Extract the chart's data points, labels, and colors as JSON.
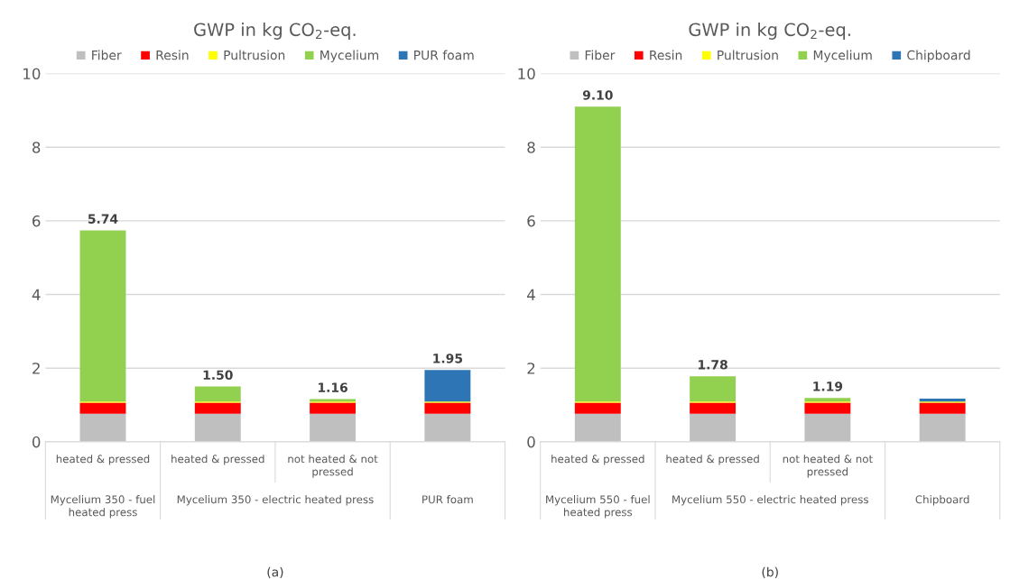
{
  "chart_data": [
    {
      "type": "bar",
      "stacked": true,
      "title": "GWP in kg CO$_{2}$-eq.",
      "categories": [
        "heated & pressed",
        "heated & pressed",
        "not heated & not pressed",
        null
      ],
      "series": [
        {
          "name": "Fiber",
          "color": "#bfbfbf",
          "values": [
            0.76,
            0.76,
            0.76,
            0.76
          ]
        },
        {
          "name": "Resin",
          "color": "#ff0000",
          "values": [
            0.3,
            0.3,
            0.3,
            0.3
          ]
        },
        {
          "name": "Pultrusion",
          "color": "#ffff00",
          "values": [
            0.03,
            0.03,
            0.03,
            0.03
          ]
        },
        {
          "name": "Mycelium",
          "color": "#92d050",
          "values": [
            4.65,
            0.41,
            0.07,
            null
          ]
        },
        {
          "name": "PUR foam",
          "color": "#2e75b6",
          "values": [
            null,
            null,
            null,
            0.86
          ]
        }
      ],
      "totals": [
        "5.74",
        "1.50",
        "1.16",
        "1.95"
      ],
      "ylim": [
        0,
        10
      ],
      "yticks": [
        0,
        2,
        4,
        6,
        8,
        10
      ],
      "grid": "y",
      "legend": "top",
      "annotations": [
        "Mycelium 350 - fuel heated press",
        "Mycelium 350 - electric heated press",
        "PUR foam",
        "(a)"
      ]
    },
    {
      "type": "bar",
      "stacked": true,
      "title": "GWP in kg CO$_{2}$-eq.",
      "categories": [
        "heated & pressed",
        "heated & pressed",
        "not heated & not pressed",
        null
      ],
      "series": [
        {
          "name": "Fiber",
          "color": "#bfbfbf",
          "values": [
            0.76,
            0.76,
            0.76,
            0.76
          ]
        },
        {
          "name": "Resin",
          "color": "#ff0000",
          "values": [
            0.3,
            0.3,
            0.3,
            0.3
          ]
        },
        {
          "name": "Pultrusion",
          "color": "#ffff00",
          "values": [
            0.03,
            0.03,
            0.03,
            0.03
          ]
        },
        {
          "name": "Mycelium",
          "color": "#92d050",
          "values": [
            8.01,
            0.69,
            0.1,
            null
          ]
        },
        {
          "name": "Chipboard",
          "color": "#2e75b6",
          "values": [
            null,
            null,
            null,
            0.08
          ]
        }
      ],
      "totals": [
        "9.10",
        "1.78",
        "1.19",
        null
      ],
      "ylim": [
        0,
        10
      ],
      "yticks": [
        0,
        2,
        4,
        6,
        8,
        10
      ],
      "grid": "y",
      "legend": "top",
      "annotations": [
        "Mycelium 550 - fuel heated press",
        "Mycelium 550 - electric heated press",
        "Chipboard",
        "(b)"
      ]
    }
  ]
}
